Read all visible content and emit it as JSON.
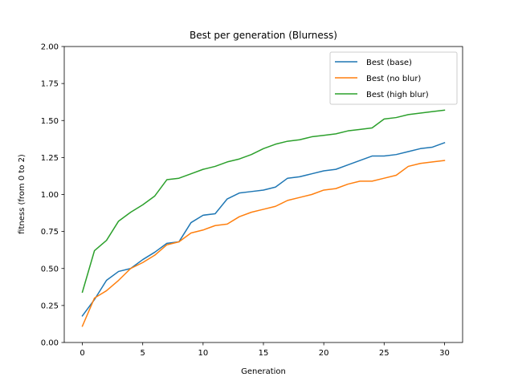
{
  "chart_data": {
    "type": "line",
    "title": "Best per generation (Blurness)",
    "xlabel": "Generation",
    "ylabel": "fitness (from 0 to 2)",
    "xlim": [
      -1.5,
      31.5
    ],
    "ylim": [
      0,
      2
    ],
    "xticks": [
      0,
      5,
      10,
      15,
      20,
      25,
      30
    ],
    "xtick_labels": [
      "0",
      "5",
      "10",
      "15",
      "20",
      "25",
      "30"
    ],
    "yticks": [
      0,
      0.25,
      0.5,
      0.75,
      1.0,
      1.25,
      1.5,
      1.75,
      2.0
    ],
    "ytick_labels": [
      "0.00",
      "0.25",
      "0.50",
      "0.75",
      "1.00",
      "1.25",
      "1.50",
      "1.75",
      "2.00"
    ],
    "grid": false,
    "legend_position": "top-right",
    "x": [
      0,
      1,
      2,
      3,
      4,
      5,
      6,
      7,
      8,
      9,
      10,
      11,
      12,
      13,
      14,
      15,
      16,
      17,
      18,
      19,
      20,
      21,
      22,
      23,
      24,
      25,
      26,
      27,
      28,
      29,
      30
    ],
    "series": [
      {
        "name": "Best (base)",
        "color": "#1f77b4",
        "values": [
          0.18,
          0.29,
          0.42,
          0.48,
          0.5,
          0.56,
          0.61,
          0.67,
          0.68,
          0.81,
          0.86,
          0.87,
          0.97,
          1.01,
          1.02,
          1.03,
          1.05,
          1.11,
          1.12,
          1.14,
          1.16,
          1.17,
          1.2,
          1.23,
          1.26,
          1.26,
          1.27,
          1.29,
          1.31,
          1.32,
          1.35
        ]
      },
      {
        "name": "Best (no blur)",
        "color": "#ff7f0e",
        "values": [
          0.11,
          0.3,
          0.35,
          0.42,
          0.5,
          0.54,
          0.59,
          0.66,
          0.68,
          0.74,
          0.76,
          0.79,
          0.8,
          0.85,
          0.88,
          0.9,
          0.92,
          0.96,
          0.98,
          1.0,
          1.03,
          1.04,
          1.07,
          1.09,
          1.09,
          1.11,
          1.13,
          1.19,
          1.21,
          1.22,
          1.23
        ]
      },
      {
        "name": "Best (high blur)",
        "color": "#2ca02c",
        "values": [
          0.34,
          0.62,
          0.69,
          0.82,
          0.88,
          0.93,
          0.99,
          1.1,
          1.11,
          1.14,
          1.17,
          1.19,
          1.22,
          1.24,
          1.27,
          1.31,
          1.34,
          1.36,
          1.37,
          1.39,
          1.4,
          1.41,
          1.43,
          1.44,
          1.45,
          1.51,
          1.52,
          1.54,
          1.55,
          1.56,
          1.57
        ]
      }
    ]
  }
}
